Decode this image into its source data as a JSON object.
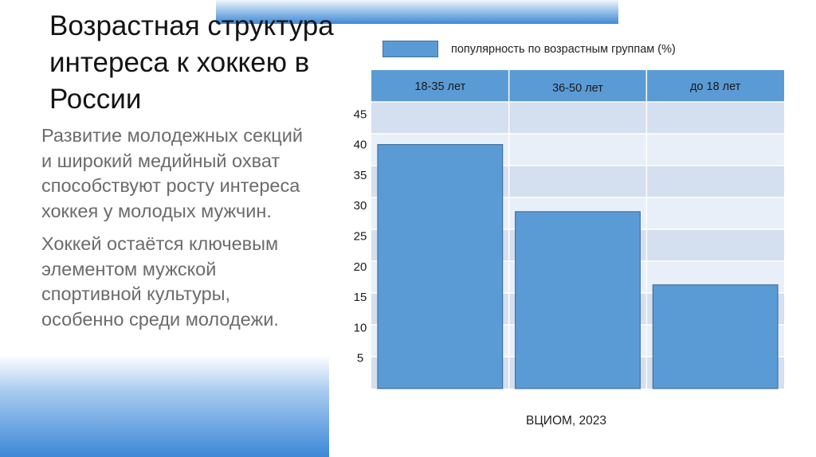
{
  "slide": {
    "title": "Возрастная структура интереса к хоккею в России",
    "paragraphs": [
      "Развитие молодежных секций\nи широкий медийный охват\nспособствуют росту интереса\nхоккея у молодых мужчин.",
      "Хоккей остаётся ключевым\nэлементом мужской\nспортивной культуры,\nособенно среди молодежи."
    ],
    "source": "ВЦИОМ, 2023"
  },
  "colors": {
    "bar": "#5b9bd5",
    "bar_border": "#41719c",
    "header_fill": "#5b9bd5",
    "row_dark": "#d4dff0",
    "row_light": "#e9eff8",
    "accent_gradient": "#3f8ad6"
  },
  "chart_data": {
    "type": "bar",
    "categories": [
      "18-35 лет",
      "36-50 лет",
      "до 18 лет"
    ],
    "series": [
      {
        "name": "популярность по возрастным группам (%)",
        "values": [
          40,
          29,
          17
        ]
      }
    ],
    "y_ticks": [
      5,
      10,
      15,
      20,
      25,
      30,
      35,
      40,
      45
    ],
    "ylim": [
      0,
      47
    ],
    "legend_position": "top",
    "categories_position": "top",
    "grid": true
  }
}
